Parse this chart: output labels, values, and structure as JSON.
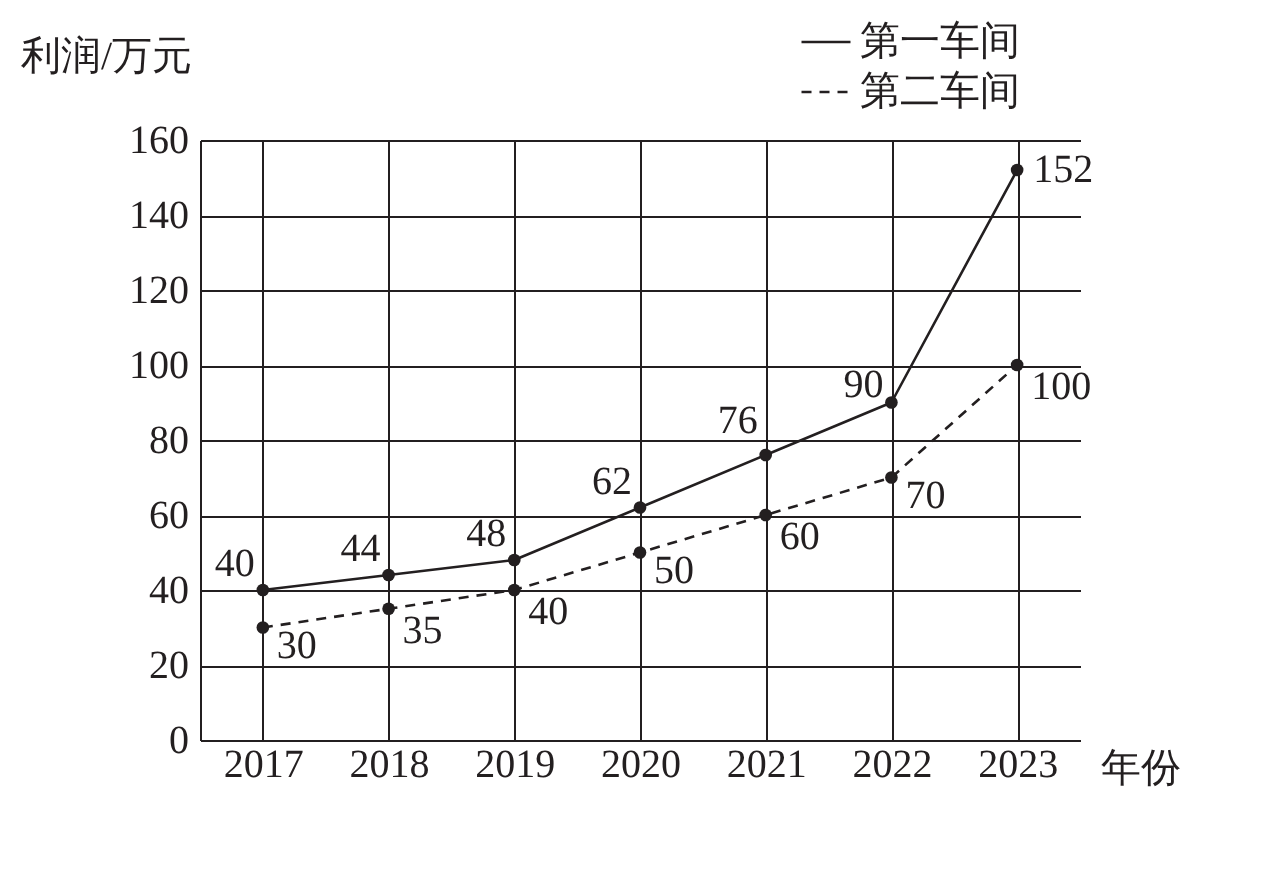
{
  "chart_data": {
    "type": "line",
    "xlabel": "年份",
    "ylabel": "利润/万元",
    "categories": [
      "2017",
      "2018",
      "2019",
      "2020",
      "2021",
      "2022",
      "2023"
    ],
    "series": [
      {
        "name": "第一车间",
        "color": "#231f20",
        "line_style": "solid",
        "values": [
          40,
          44,
          48,
          62,
          76,
          90,
          152
        ]
      },
      {
        "name": "第二车间",
        "color": "#231f20",
        "line_style": "dashed",
        "values": [
          30,
          35,
          40,
          50,
          60,
          70,
          100
        ]
      }
    ],
    "ylim": [
      0,
      160
    ],
    "yticks": [
      0,
      20,
      40,
      60,
      80,
      100,
      120,
      140,
      160
    ],
    "grid": true,
    "legend": "top right",
    "marker": "circle",
    "data_labels": true
  }
}
